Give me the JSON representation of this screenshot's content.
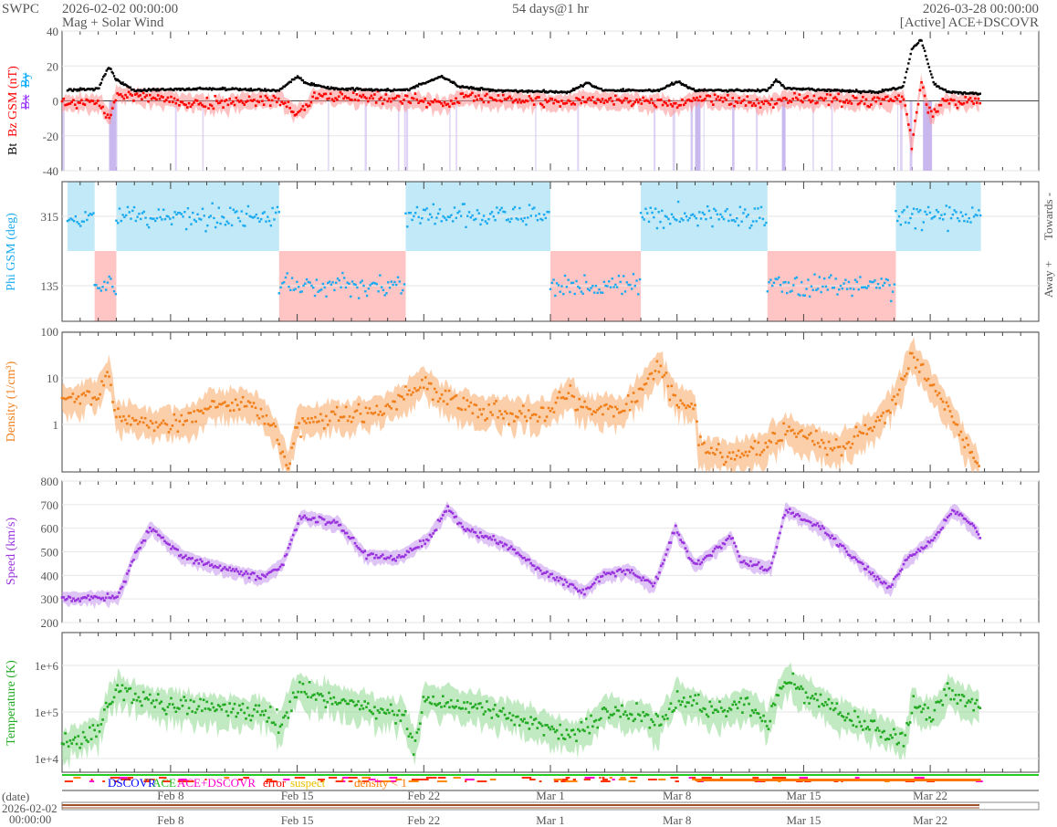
{
  "header": {
    "org": "SWPC",
    "start": "2026-02-02 00:00:00",
    "subtitle": "Mag + Solar Wind",
    "span": "54 days@1 hr",
    "end": "2026-03-28 00:00:00",
    "source": "[Active] ACE+DSCOVR"
  },
  "colors": {
    "bt": "#000000",
    "bz": "#ff0000",
    "bx": "#9933ff",
    "by": "#00aaff",
    "phi": "#1aaaf0",
    "towards": "#c2e9f7",
    "away": "#ffc4c4",
    "density": "#f07f1a",
    "speed": "#9933dd",
    "temperature": "#22aa22"
  },
  "labels": {
    "date_axis": "(date)",
    "date_start": "2026-02-02",
    "time_start": "00:00:00",
    "towards": "Towards -",
    "away": "Away +"
  },
  "legend": [
    {
      "label": "DSCOVR",
      "color": "#0000ff"
    },
    {
      "label": "ACE",
      "color": "#22bb22"
    },
    {
      "label": "ACE+DSCOVR",
      "color": "#ff00cc"
    },
    {
      "label": "error",
      "color": "#ff0000"
    },
    {
      "label": "suspect",
      "color": "#e8c000"
    },
    {
      "label": "density < 1",
      "color": "#ff7700"
    }
  ],
  "chart_data": [
    {
      "type": "line",
      "name": "mag",
      "ylabel_parts": [
        "Bt",
        "Bz GSM (nT)",
        "Bx",
        "By"
      ],
      "ylim": [
        -40,
        40
      ],
      "yticks": [
        "40",
        "20",
        "0",
        "-20",
        "-40"
      ],
      "bt_anchors": [
        [
          0,
          6
        ],
        [
          2,
          7
        ],
        [
          2.6,
          20
        ],
        [
          3,
          12
        ],
        [
          4,
          6
        ],
        [
          8,
          7
        ],
        [
          12,
          6
        ],
        [
          13,
          14
        ],
        [
          13.5,
          10
        ],
        [
          15,
          7
        ],
        [
          19,
          6
        ],
        [
          20.5,
          12
        ],
        [
          21,
          14
        ],
        [
          22,
          8
        ],
        [
          24,
          6
        ],
        [
          28,
          5
        ],
        [
          29,
          10
        ],
        [
          30,
          6
        ],
        [
          33,
          6
        ],
        [
          34,
          11
        ],
        [
          35,
          6
        ],
        [
          39,
          6
        ],
        [
          39.5,
          12
        ],
        [
          40,
          7
        ],
        [
          45,
          5
        ],
        [
          46.5,
          8
        ],
        [
          47,
          30
        ],
        [
          47.5,
          35
        ],
        [
          48.2,
          10
        ],
        [
          49,
          5
        ],
        [
          51,
          4
        ]
      ],
      "bz_anchors": [
        [
          0,
          -2
        ],
        [
          2,
          0
        ],
        [
          2.6,
          -10
        ],
        [
          3,
          4
        ],
        [
          5,
          2
        ],
        [
          8,
          -2
        ],
        [
          12,
          1
        ],
        [
          13,
          -8
        ],
        [
          14,
          3
        ],
        [
          20,
          0
        ],
        [
          21,
          -3
        ],
        [
          22,
          2
        ],
        [
          28,
          -1
        ],
        [
          29,
          1
        ],
        [
          33,
          -1
        ],
        [
          34,
          -3
        ],
        [
          35,
          2
        ],
        [
          39,
          -2
        ],
        [
          40,
          1
        ],
        [
          45,
          0
        ],
        [
          46.5,
          2
        ],
        [
          47,
          -25
        ],
        [
          47.5,
          10
        ],
        [
          48,
          -8
        ],
        [
          49,
          0
        ],
        [
          51,
          0
        ]
      ]
    },
    {
      "type": "scatter",
      "name": "phi",
      "ylabel": "Phi GSM (deg)",
      "yticks": [
        "315",
        "135"
      ],
      "sectors": [
        {
          "from": 0.3,
          "to": 1.8,
          "dir": "towards"
        },
        {
          "from": 1.8,
          "to": 3.0,
          "dir": "away"
        },
        {
          "from": 3.0,
          "to": 12.0,
          "dir": "towards"
        },
        {
          "from": 12.0,
          "to": 19.0,
          "dir": "away"
        },
        {
          "from": 19.0,
          "to": 27.0,
          "dir": "towards"
        },
        {
          "from": 27.0,
          "to": 32.0,
          "dir": "away"
        },
        {
          "from": 32.0,
          "to": 39.0,
          "dir": "towards"
        },
        {
          "from": 39.0,
          "to": 46.1,
          "dir": "away"
        },
        {
          "from": 46.1,
          "to": 50.8,
          "dir": "towards"
        }
      ]
    },
    {
      "type": "line",
      "name": "density",
      "ylabel": "Density (1/cm³)",
      "scale": "log",
      "yticks": [
        "100",
        "10",
        "1"
      ],
      "anchors": [
        [
          0,
          3
        ],
        [
          2,
          4
        ],
        [
          2.6,
          15
        ],
        [
          3,
          1.5
        ],
        [
          5,
          1
        ],
        [
          7,
          1.2
        ],
        [
          8,
          2.5
        ],
        [
          10,
          3
        ],
        [
          11,
          2
        ],
        [
          12,
          0.5
        ],
        [
          12.5,
          0.1
        ],
        [
          13,
          1
        ],
        [
          15,
          1.5
        ],
        [
          18,
          2
        ],
        [
          19,
          4
        ],
        [
          20,
          8
        ],
        [
          21,
          4
        ],
        [
          23,
          2
        ],
        [
          26,
          1.5
        ],
        [
          27,
          2
        ],
        [
          28,
          5
        ],
        [
          29,
          2
        ],
        [
          31,
          2
        ],
        [
          32,
          6
        ],
        [
          33,
          20
        ],
        [
          34,
          3
        ],
        [
          35,
          2.5
        ],
        [
          35.2,
          0.3
        ],
        [
          37,
          0.2
        ],
        [
          39,
          0.4
        ],
        [
          40,
          0.8
        ],
        [
          43,
          0.3
        ],
        [
          45,
          1
        ],
        [
          46,
          3
        ],
        [
          47,
          30
        ],
        [
          48,
          8
        ],
        [
          49,
          2
        ],
        [
          49.5,
          0.8
        ],
        [
          50.8,
          0.1
        ]
      ]
    },
    {
      "type": "line",
      "name": "speed",
      "ylabel": "Speed (km/s)",
      "ylim": [
        200,
        800
      ],
      "yticks": [
        "800",
        "700",
        "600",
        "500",
        "400",
        "300",
        "200"
      ],
      "anchors": [
        [
          0,
          300
        ],
        [
          3.1,
          310
        ],
        [
          4.1,
          500
        ],
        [
          4.9,
          600
        ],
        [
          6.7,
          480
        ],
        [
          9.2,
          420
        ],
        [
          11.2,
          390
        ],
        [
          12.2,
          450
        ],
        [
          13.2,
          650
        ],
        [
          15.3,
          620
        ],
        [
          16.8,
          480
        ],
        [
          18.8,
          480
        ],
        [
          20.3,
          560
        ],
        [
          21.3,
          680
        ],
        [
          22.3,
          600
        ],
        [
          24.8,
          520
        ],
        [
          26.4,
          420
        ],
        [
          28.9,
          330
        ],
        [
          29.9,
          400
        ],
        [
          31.4,
          420
        ],
        [
          32.7,
          350
        ],
        [
          33.9,
          600
        ],
        [
          35,
          440
        ],
        [
          37,
          560
        ],
        [
          37.5,
          460
        ],
        [
          39.2,
          430
        ],
        [
          40,
          680
        ],
        [
          42,
          600
        ],
        [
          44,
          460
        ],
        [
          45.8,
          340
        ],
        [
          46.6,
          460
        ],
        [
          48.1,
          550
        ],
        [
          49.3,
          680
        ],
        [
          50.8,
          570
        ]
      ]
    },
    {
      "type": "line",
      "name": "temperature",
      "ylabel": "Temperature (K)",
      "scale": "log",
      "yticks": [
        "1e+6",
        "1e+5",
        "1e+4"
      ],
      "anchors": [
        [
          0,
          20000
        ],
        [
          2,
          40000
        ],
        [
          2.6,
          200000
        ],
        [
          3,
          300000
        ],
        [
          5,
          150000
        ],
        [
          8,
          120000
        ],
        [
          11,
          100000
        ],
        [
          12,
          50000
        ],
        [
          13,
          300000
        ],
        [
          16,
          150000
        ],
        [
          19,
          80000
        ],
        [
          19.5,
          15000
        ],
        [
          20,
          200000
        ],
        [
          23,
          120000
        ],
        [
          26,
          60000
        ],
        [
          28,
          30000
        ],
        [
          29,
          40000
        ],
        [
          30,
          100000
        ],
        [
          32,
          80000
        ],
        [
          33,
          50000
        ],
        [
          34,
          200000
        ],
        [
          36,
          100000
        ],
        [
          38,
          150000
        ],
        [
          39,
          60000
        ],
        [
          40,
          500000
        ],
        [
          42,
          150000
        ],
        [
          44,
          60000
        ],
        [
          46,
          30000
        ],
        [
          46.6,
          20000
        ],
        [
          47,
          150000
        ],
        [
          48,
          80000
        ],
        [
          49,
          250000
        ],
        [
          50.8,
          130000
        ]
      ]
    }
  ],
  "xaxis": {
    "ticks": [
      {
        "day": 6,
        "label": "Feb 8"
      },
      {
        "day": 13,
        "label": "Feb 15"
      },
      {
        "day": 20,
        "label": "Feb 22"
      },
      {
        "day": 27,
        "label": "Mar 1"
      },
      {
        "day": 34,
        "label": "Mar 8"
      },
      {
        "day": 41,
        "label": "Mar 15"
      },
      {
        "day": 48,
        "label": "Mar 22"
      }
    ],
    "days": 54,
    "data_end_day": 50.8
  }
}
